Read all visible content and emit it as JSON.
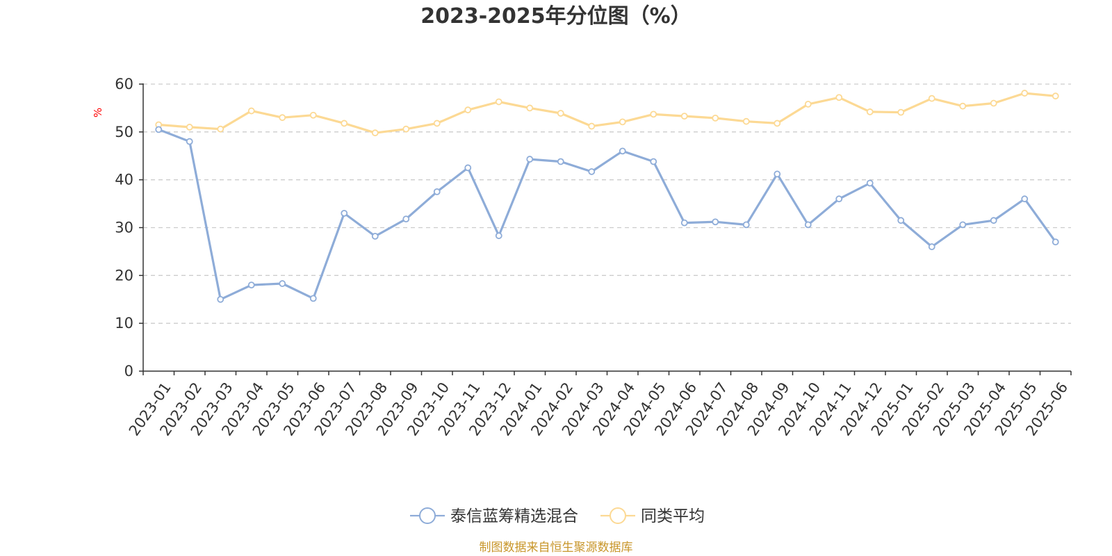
{
  "chart_data": {
    "type": "line",
    "title": "2023-2025年分位图（%）",
    "ylabel": "%",
    "ylim": [
      0,
      60
    ],
    "yticks": [
      "0",
      "10",
      "20",
      "30",
      "40",
      "50",
      "60"
    ],
    "grid": true,
    "legend_position": "bottom-center",
    "categories": [
      "2023-01",
      "2023-02",
      "2023-03",
      "2023-04",
      "2023-05",
      "2023-06",
      "2023-07",
      "2023-08",
      "2023-09",
      "2023-10",
      "2023-11",
      "2023-12",
      "2024-01",
      "2024-02",
      "2024-03",
      "2024-04",
      "2024-05",
      "2024-06",
      "2024-07",
      "2024-08",
      "2024-09",
      "2024-10",
      "2024-11",
      "2024-12",
      "2025-01",
      "2025-02",
      "2025-03",
      "2025-04",
      "2025-05",
      "2025-06"
    ],
    "series": [
      {
        "name": "泰信蓝筹精选混合",
        "color": "#8eacd8",
        "values": [
          50.5,
          48,
          15,
          18,
          18.3,
          15.2,
          33,
          28.2,
          31.8,
          37.5,
          42.5,
          28.3,
          44.3,
          43.8,
          41.7,
          46,
          43.8,
          31,
          31.2,
          30.6,
          41.2,
          30.6,
          36,
          39.3,
          31.5,
          26,
          30.6,
          31.5,
          36,
          27
        ]
      },
      {
        "name": "同类平均",
        "color": "#fcd994",
        "values": [
          51.5,
          51,
          50.6,
          54.4,
          53,
          53.5,
          51.8,
          49.8,
          50.6,
          51.8,
          54.6,
          56.3,
          55,
          53.9,
          51.2,
          52.1,
          53.7,
          53.3,
          52.9,
          52.2,
          51.8,
          55.8,
          57.2,
          54.2,
          54.1,
          57,
          55.4,
          56,
          58.1,
          57.5
        ]
      }
    ]
  },
  "footer": {
    "source": "制图数据来自恒生聚源数据库"
  }
}
